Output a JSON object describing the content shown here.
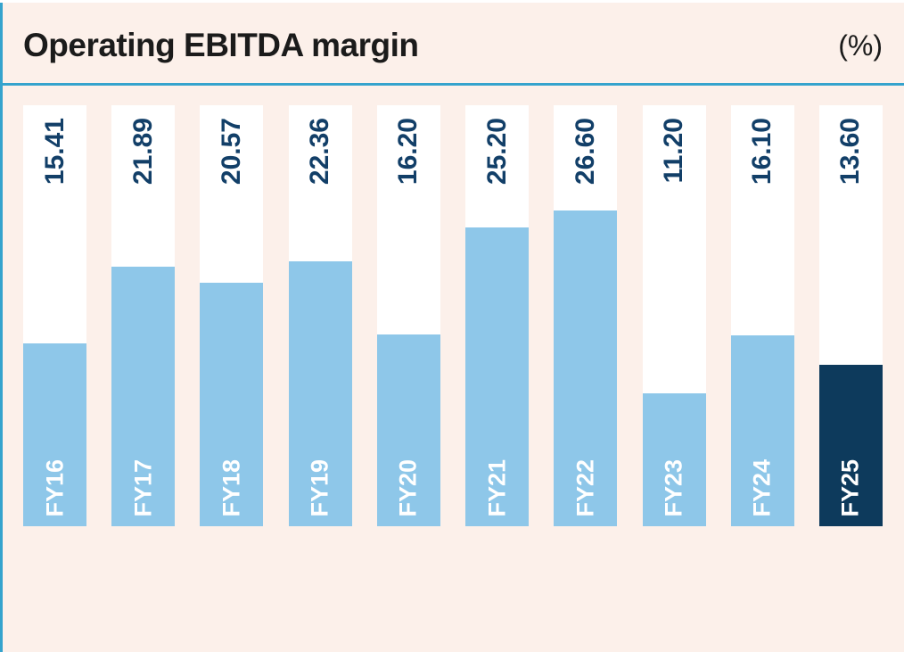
{
  "header": {
    "title": "Operating EBITDA margin",
    "unit_label": "(%)"
  },
  "chart_data": {
    "type": "bar",
    "title": "Operating EBITDA margin",
    "ylabel": "%",
    "categories": [
      "FY16",
      "FY17",
      "FY18",
      "FY19",
      "FY20",
      "FY21",
      "FY22",
      "FY23",
      "FY24",
      "FY25"
    ],
    "values": [
      15.41,
      21.89,
      20.57,
      22.36,
      16.2,
      25.2,
      26.6,
      11.2,
      16.1,
      13.6
    ],
    "value_labels": [
      "15.41",
      "21.89",
      "20.57",
      "22.36",
      "16.20",
      "25.20",
      "26.60",
      "11.20",
      "16.10",
      "13.60"
    ],
    "ylim": [
      0,
      35.5
    ],
    "grid": false,
    "legend": false,
    "value_label_rotation": 90,
    "category_label_rotation": 90,
    "highlight_category": "FY25",
    "colors": {
      "bar": "#8ec7e9",
      "highlight_bar": "#0d3a5c",
      "track": "#ffffff",
      "value_text": "#123f68",
      "category_text": "#ffffff",
      "background": "#fcf0ea",
      "accent_line": "#35a3cd",
      "title_text": "#1b1b1b"
    }
  }
}
